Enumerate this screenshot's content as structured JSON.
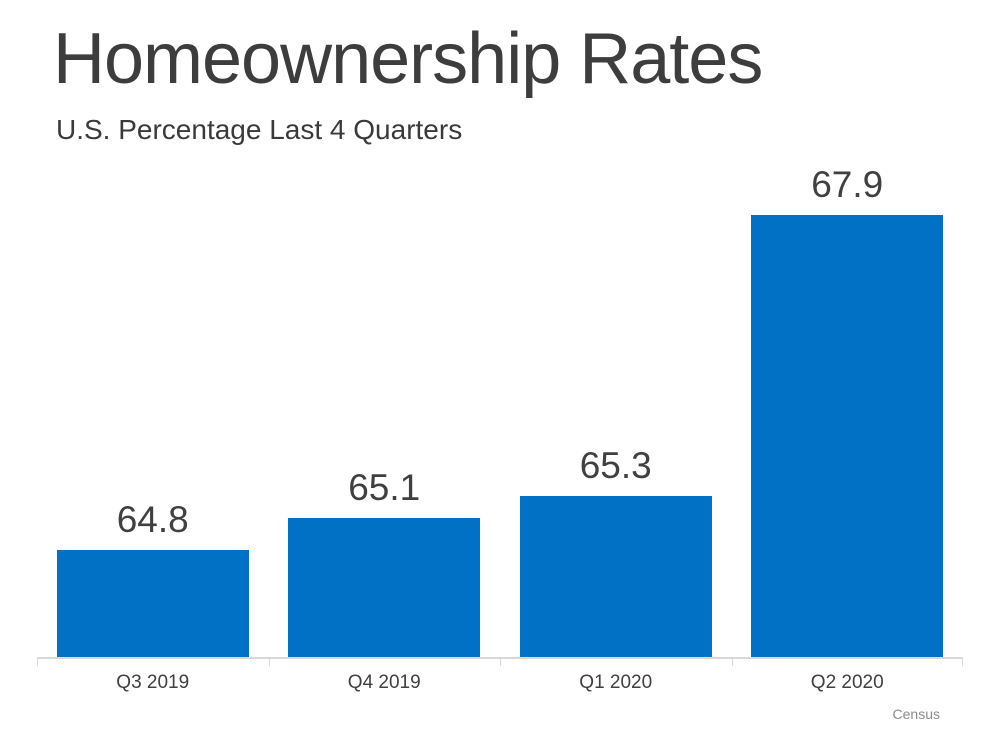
{
  "page": {
    "title": "Homeownership Rates",
    "subtitle": "U.S. Percentage Last 4 Quarters",
    "source": "Census"
  },
  "chart_data": {
    "type": "bar",
    "title": "Homeownership Rates",
    "subtitle": "U.S. Percentage Last 4 Quarters",
    "categories": [
      "Q3 2019",
      "Q4 2019",
      "Q1 2020",
      "Q2 2020"
    ],
    "values": [
      64.8,
      65.1,
      65.3,
      67.9
    ],
    "data_labels": [
      64.8,
      65.1,
      65.3,
      67.9
    ],
    "xlabel": "",
    "ylabel": "",
    "ylim": [
      63.8,
      68.5
    ],
    "grid": false,
    "legend": false,
    "y_axis_visible": false,
    "bar_color": "#0071c5",
    "text_color": "#404040",
    "axis_color": "#d9d9d9",
    "source": "Census"
  }
}
